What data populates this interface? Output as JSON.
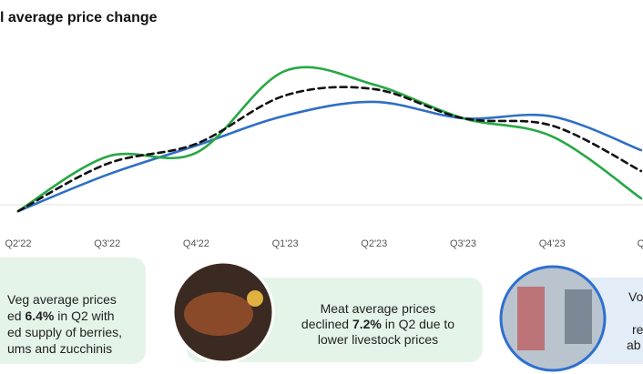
{
  "chart_data": {
    "type": "line",
    "title": "l average price change",
    "categories": [
      "Q2'22",
      "Q3'22",
      "Q4'22",
      "Q1'23",
      "Q2'23",
      "Q3'23",
      "Q4'23",
      "Q"
    ],
    "series": [
      {
        "color": "#2f6fc4",
        "values": [
          -3.9,
          18.3,
          36.1,
          54.4,
          62.8,
          52.8,
          53.9,
          33.3
        ]
      },
      {
        "color": "#27a845",
        "values": [
          -3.9,
          29.4,
          31.7,
          81.7,
          73.3,
          52.8,
          41.7,
          3.9
        ]
      },
      {
        "color": "#111111",
        "dashed": true,
        "values": [
          -3.9,
          25,
          37.2,
          66.7,
          70.6,
          52.8,
          48.3,
          20.6
        ]
      }
    ],
    "ylim": [
      0,
      100
    ]
  },
  "callouts": [
    {
      "lines": [
        [
          {
            "text": "Veg average prices"
          }
        ],
        [
          {
            "text": "ed "
          },
          {
            "text": "6.4%",
            "bold": true
          },
          {
            "text": " in Q2 with"
          }
        ],
        [
          {
            "text": "ed supply of berries,"
          }
        ],
        [
          {
            "text": "ums and zucchinis"
          }
        ]
      ]
    },
    {
      "lines": [
        [
          {
            "text": "Meat average prices"
          }
        ],
        [
          {
            "text": "declined "
          },
          {
            "text": "7.2%",
            "bold": true
          },
          {
            "text": " in Q2 due to"
          }
        ],
        [
          {
            "text": "lower livestock prices"
          }
        ]
      ]
    },
    {
      "lines": [
        [
          {
            "text": "Vo"
          }
        ],
        [
          {
            "text": "re"
          }
        ],
        [
          {
            "text": "ab"
          }
        ]
      ]
    }
  ]
}
